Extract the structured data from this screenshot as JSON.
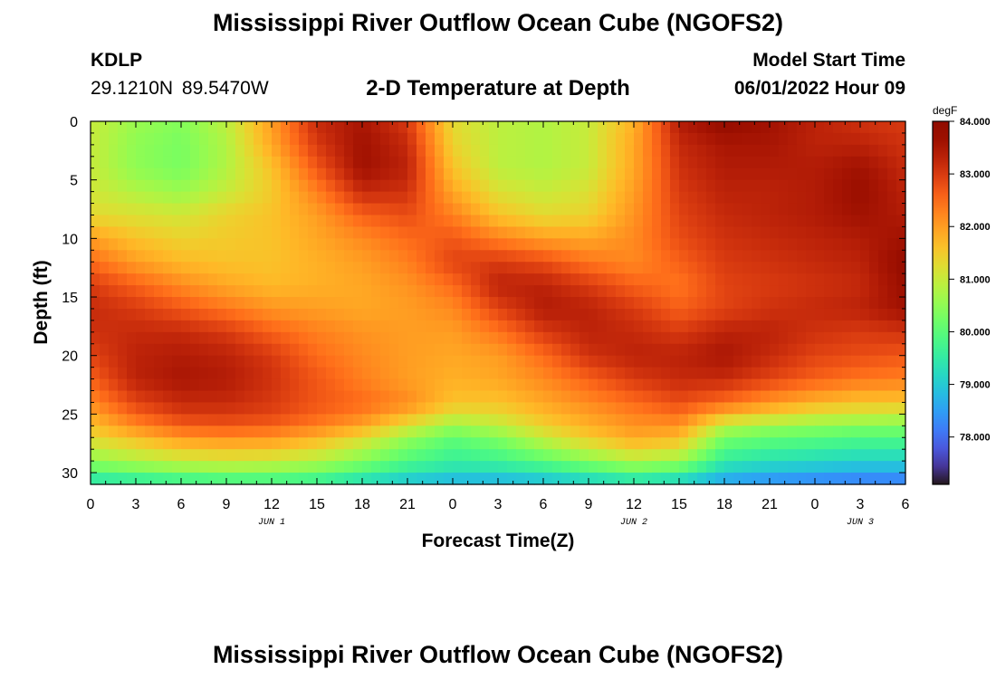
{
  "header": {
    "title": "Mississippi River Outflow Ocean Cube (NGOFS2)",
    "station_id": "KDLP",
    "station_coords": "29.1210N  89.5470W",
    "start_label": "Model Start Time",
    "start_value": "06/01/2022 Hour 09"
  },
  "footer": {
    "title": "Mississippi River Outflow Ocean Cube (NGOFS2)"
  },
  "chart_data": {
    "type": "heatmap",
    "title": "2-D Temperature at Depth",
    "xlabel": "Forecast Time(Z)",
    "ylabel": "Depth (ft)",
    "x_hours": [
      0,
      3,
      6,
      9,
      12,
      15,
      18,
      21,
      24,
      27,
      30,
      33,
      36,
      39,
      42,
      45,
      48,
      51,
      54
    ],
    "x_tick_labels": [
      "0",
      "3",
      "6",
      "9",
      "12",
      "15",
      "18",
      "21",
      "0",
      "3",
      "6",
      "9",
      "12",
      "15",
      "18",
      "21",
      "0",
      "3",
      "6"
    ],
    "date_labels": [
      {
        "text": "JUN 1",
        "hour": 12
      },
      {
        "text": "JUN 2",
        "hour": 36
      },
      {
        "text": "JUN 3",
        "hour": 51
      }
    ],
    "xlim": [
      0,
      54
    ],
    "ylim": [
      31,
      0
    ],
    "y_ticks": [
      0,
      5,
      10,
      15,
      20,
      25,
      30
    ],
    "colorbar": {
      "unit": "degF",
      "range": [
        77.1,
        84.0
      ],
      "ticks": [
        84,
        83,
        82,
        81,
        80,
        79,
        78
      ],
      "tick_labels": [
        "84.000",
        "83.000",
        "82.000",
        "81.000",
        "80.000",
        "79.000",
        "78.000"
      ]
    },
    "depth_ft": [
      0,
      2,
      4,
      6,
      8,
      10,
      12,
      14,
      16,
      18,
      20,
      22,
      24,
      25,
      26,
      27,
      28,
      29,
      30,
      31
    ],
    "temperature_degF": [
      [
        81.0,
        80.6,
        80.4,
        80.9,
        82.0,
        83.2,
        83.5,
        83.0,
        81.3,
        80.9,
        80.8,
        81.0,
        81.8,
        83.4,
        83.8,
        83.6,
        83.3,
        83.1,
        83.0
      ],
      [
        81.0,
        80.5,
        80.3,
        80.8,
        81.9,
        83.0,
        83.6,
        83.2,
        81.4,
        80.9,
        80.8,
        81.0,
        81.9,
        83.2,
        83.5,
        83.5,
        83.3,
        83.3,
        83.1
      ],
      [
        81.0,
        80.5,
        80.3,
        80.8,
        81.6,
        82.7,
        83.6,
        83.3,
        81.6,
        80.9,
        80.8,
        81.0,
        81.9,
        83.1,
        83.4,
        83.4,
        83.4,
        83.6,
        83.2
      ],
      [
        81.1,
        80.8,
        80.6,
        81.0,
        81.5,
        82.3,
        83.2,
        83.1,
        81.9,
        81.2,
        81.0,
        81.2,
        82.0,
        83.0,
        83.3,
        83.3,
        83.4,
        83.7,
        83.3
      ],
      [
        81.3,
        81.2,
        81.1,
        81.4,
        81.6,
        82.0,
        82.6,
        82.8,
        82.3,
        81.6,
        81.3,
        81.4,
        82.1,
        82.9,
        83.2,
        83.3,
        83.4,
        83.6,
        83.4
      ],
      [
        82.0,
        81.6,
        81.4,
        81.5,
        81.6,
        81.9,
        82.2,
        82.5,
        82.7,
        82.3,
        82.0,
        81.9,
        82.2,
        82.8,
        83.1,
        83.2,
        83.3,
        83.4,
        83.6
      ],
      [
        82.5,
        82.0,
        81.7,
        81.6,
        81.6,
        81.8,
        82.0,
        82.3,
        82.9,
        83.0,
        82.8,
        82.4,
        82.2,
        82.6,
        83.0,
        83.1,
        83.2,
        83.3,
        83.8
      ],
      [
        83.0,
        82.6,
        82.2,
        81.9,
        81.7,
        81.8,
        81.9,
        82.1,
        82.5,
        83.3,
        83.3,
        83.0,
        82.6,
        82.4,
        82.9,
        83.0,
        83.1,
        83.2,
        83.7
      ],
      [
        83.2,
        83.0,
        82.7,
        82.4,
        82.1,
        82.0,
        81.9,
        82.0,
        82.2,
        82.9,
        83.4,
        83.3,
        83.0,
        82.6,
        82.9,
        83.1,
        83.2,
        83.3,
        83.6
      ],
      [
        83.1,
        83.2,
        83.2,
        83.0,
        82.6,
        82.3,
        82.1,
        82.0,
        82.0,
        82.4,
        83.0,
        83.3,
        83.2,
        83.0,
        83.3,
        83.3,
        83.1,
        83.0,
        83.1
      ],
      [
        82.9,
        83.3,
        83.4,
        83.3,
        83.0,
        82.5,
        82.2,
        82.0,
        81.9,
        82.0,
        82.5,
        83.1,
        83.3,
        83.3,
        83.5,
        83.2,
        82.9,
        82.8,
        82.7
      ],
      [
        82.6,
        83.3,
        83.5,
        83.4,
        83.1,
        82.7,
        82.3,
        82.0,
        81.8,
        81.9,
        82.2,
        82.6,
        83.0,
        83.2,
        83.2,
        82.9,
        82.6,
        82.4,
        82.3
      ],
      [
        82.2,
        82.9,
        83.2,
        83.2,
        83.0,
        82.7,
        82.5,
        82.2,
        81.6,
        81.6,
        81.9,
        82.2,
        82.5,
        82.8,
        82.5,
        82.1,
        81.8,
        81.6,
        81.6
      ],
      [
        81.9,
        82.6,
        83.0,
        83.0,
        82.9,
        82.6,
        82.3,
        81.8,
        81.2,
        81.3,
        81.7,
        82.0,
        82.3,
        82.5,
        81.8,
        81.5,
        81.2,
        81.1,
        81.0
      ],
      [
        81.6,
        82.2,
        82.6,
        82.7,
        82.6,
        82.3,
        81.9,
        81.2,
        80.6,
        80.9,
        81.4,
        81.8,
        82.1,
        82.1,
        80.9,
        80.6,
        80.5,
        80.4,
        80.4
      ],
      [
        81.3,
        81.7,
        82.1,
        82.2,
        82.1,
        81.8,
        81.3,
        80.6,
        80.1,
        80.4,
        81.0,
        81.5,
        81.9,
        81.7,
        80.3,
        80.1,
        80.0,
        79.9,
        79.9
      ],
      [
        80.9,
        81.2,
        81.5,
        81.6,
        81.6,
        81.3,
        80.8,
        80.2,
        79.8,
        80.0,
        80.5,
        81.0,
        81.4,
        81.2,
        79.9,
        79.7,
        79.6,
        79.5,
        79.5
      ],
      [
        80.5,
        80.8,
        81.0,
        81.1,
        81.0,
        80.8,
        80.4,
        79.9,
        79.6,
        79.7,
        80.0,
        80.4,
        80.8,
        80.6,
        79.5,
        79.3,
        79.2,
        79.1,
        79.1
      ],
      [
        79.9,
        80.1,
        80.3,
        80.4,
        80.4,
        80.2,
        79.8,
        79.4,
        79.2,
        79.2,
        79.4,
        79.7,
        80.0,
        79.8,
        79.0,
        78.8,
        78.7,
        78.6,
        78.6
      ],
      [
        79.2,
        79.3,
        79.4,
        79.5,
        79.5,
        79.4,
        79.1,
        78.8,
        78.6,
        78.6,
        78.7,
        78.9,
        79.1,
        78.9,
        78.4,
        78.2,
        78.1,
        78.0,
        78.0
      ]
    ]
  }
}
